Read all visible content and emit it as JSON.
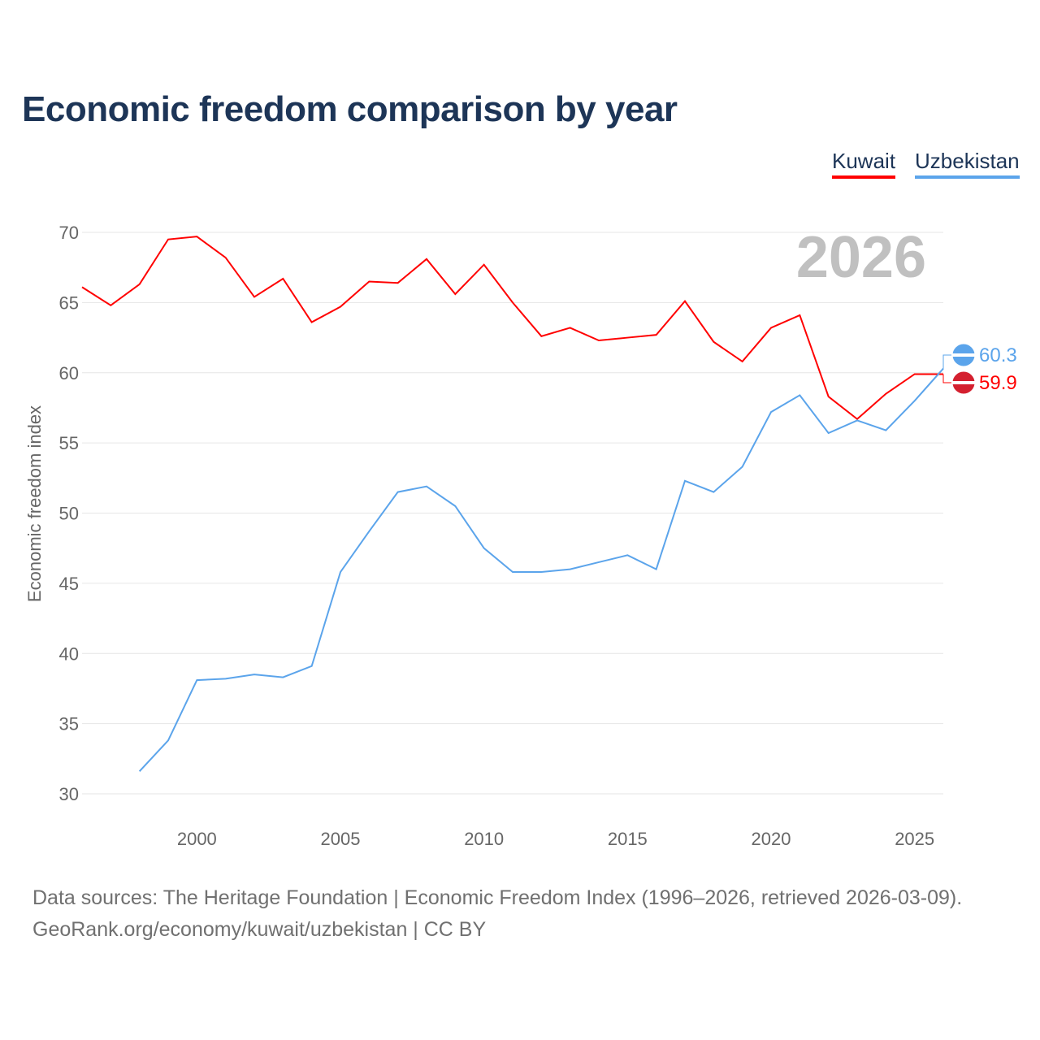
{
  "chart_data": {
    "type": "line",
    "title": "Economic freedom comparison by year",
    "xlabel": "",
    "ylabel": "Economic freedom index",
    "xlim": [
      1996,
      2026
    ],
    "ylim": [
      30,
      70
    ],
    "x_ticks": [
      2000,
      2005,
      2010,
      2015,
      2020,
      2025
    ],
    "y_ticks": [
      30,
      35,
      40,
      45,
      50,
      55,
      60,
      65,
      70
    ],
    "grid": true,
    "legend_position": "top-right",
    "year_watermark": "2026",
    "series": [
      {
        "name": "Kuwait",
        "color": "#ff0000",
        "end_label": "59.9",
        "x": [
          1996,
          1997,
          1998,
          1999,
          2000,
          2001,
          2002,
          2003,
          2004,
          2005,
          2006,
          2007,
          2008,
          2009,
          2010,
          2011,
          2012,
          2013,
          2014,
          2015,
          2016,
          2017,
          2018,
          2019,
          2020,
          2021,
          2022,
          2023,
          2024,
          2025,
          2026
        ],
        "values": [
          66.1,
          64.8,
          66.3,
          69.5,
          69.7,
          68.2,
          65.4,
          66.7,
          63.6,
          64.7,
          66.5,
          66.4,
          68.1,
          65.6,
          67.7,
          65.0,
          62.6,
          63.2,
          62.3,
          62.5,
          62.7,
          65.1,
          62.2,
          60.8,
          63.2,
          64.1,
          58.3,
          56.7,
          58.5,
          59.9,
          59.9
        ]
      },
      {
        "name": "Uzbekistan",
        "color": "#5ba4eb",
        "end_label": "60.3",
        "x": [
          1998,
          1999,
          2000,
          2001,
          2002,
          2003,
          2004,
          2005,
          2006,
          2007,
          2008,
          2009,
          2010,
          2011,
          2012,
          2013,
          2014,
          2015,
          2016,
          2017,
          2018,
          2019,
          2020,
          2021,
          2022,
          2023,
          2024,
          2025,
          2026
        ],
        "values": [
          31.6,
          33.8,
          38.1,
          38.2,
          38.5,
          38.3,
          39.1,
          45.8,
          48.7,
          51.5,
          51.9,
          50.5,
          47.5,
          45.8,
          45.8,
          46.0,
          46.5,
          47.0,
          46.0,
          52.3,
          51.5,
          53.3,
          57.2,
          58.4,
          55.7,
          56.6,
          55.9,
          58.0,
          60.3
        ]
      }
    ]
  },
  "footer": {
    "line1": "Data sources: The Heritage Foundation | Economic Freedom Index (1996–2026, retrieved 2026-03-09).",
    "line2": "GeoRank.org/economy/kuwait/uzbekistan | CC BY"
  }
}
